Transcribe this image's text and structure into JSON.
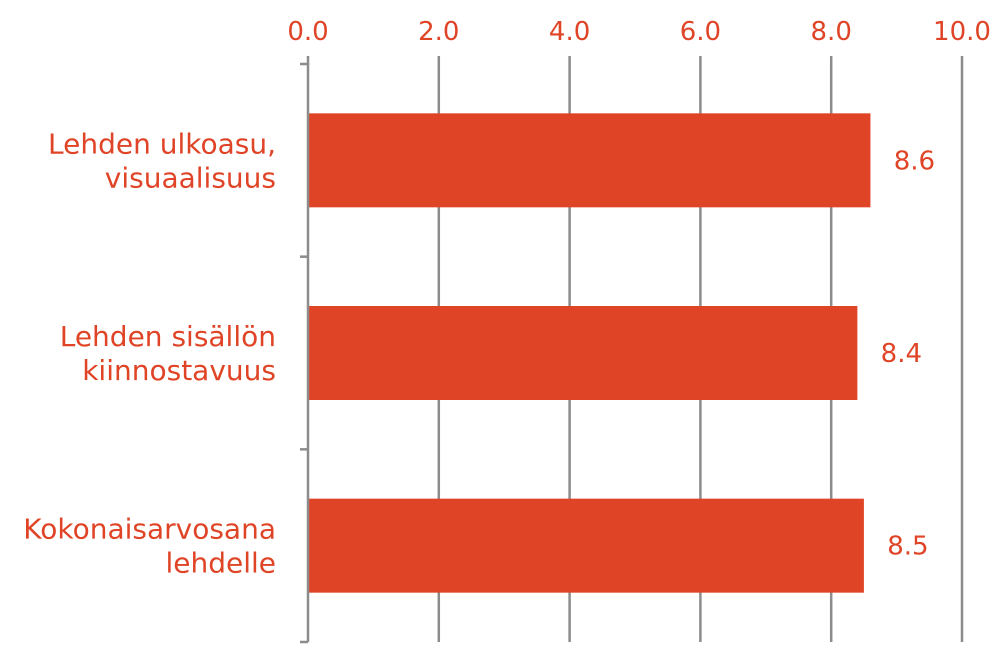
{
  "chart_data": {
    "type": "bar",
    "orientation": "horizontal",
    "categories": [
      [
        "Lehden ulkoasu,",
        "visuaalisuus"
      ],
      [
        "Lehden sisällön",
        "kiinnostavuus"
      ],
      [
        "Kokonaisarvosana",
        "lehdelle"
      ]
    ],
    "values": [
      8.6,
      8.4,
      8.5
    ],
    "data_labels": [
      "8.6",
      "8.4",
      "8.5"
    ],
    "tick_labels": [
      "0.0",
      "2.0",
      "4.0",
      "6.0",
      "8.0",
      "10.0"
    ],
    "xlim": [
      0,
      10
    ],
    "x_axis_position": "top",
    "grid": true,
    "legend": "none",
    "title": "",
    "xlabel": "",
    "ylabel": ""
  },
  "colors": {
    "bar": "#E04426",
    "text": "#E04426",
    "grid": "#8C8C8C",
    "axis": "#8C8C8C"
  }
}
